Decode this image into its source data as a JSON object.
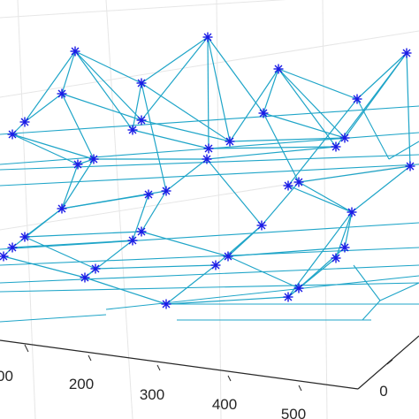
{
  "chart_data": {
    "type": "scatter",
    "title": "",
    "xlabel": "",
    "ylabel": "",
    "zlabel": "",
    "grid": true,
    "x_ticks": [
      {
        "label": "200"
      },
      {
        "label": "300"
      },
      {
        "label": "400"
      },
      {
        "label": "500"
      }
    ],
    "x_partial_tick": "00",
    "y_ticks": [
      {
        "label": "0"
      }
    ],
    "colors": {
      "wire": "#1FA5C8",
      "marker": "#1A1AE6",
      "axis": "#262626",
      "grid": "#E6E6E6"
    },
    "marker": "asterisk",
    "series": [
      {
        "values": [
          {
            "x": 85,
            "y": 58
          },
          {
            "x": 235,
            "y": 42
          },
          {
            "x": 315,
            "y": 78
          },
          {
            "x": 460,
            "y": 60
          },
          {
            "x": 70,
            "y": 106
          },
          {
            "x": 160,
            "y": 94
          },
          {
            "x": 298,
            "y": 128
          },
          {
            "x": 404,
            "y": 112
          },
          {
            "x": 28,
            "y": 138
          },
          {
            "x": 160,
            "y": 136
          },
          {
            "x": 150,
            "y": 147
          },
          {
            "x": 14,
            "y": 152
          },
          {
            "x": 260,
            "y": 160
          },
          {
            "x": 236,
            "y": 168
          },
          {
            "x": 234,
            "y": 180
          },
          {
            "x": 390,
            "y": 156
          },
          {
            "x": 380,
            "y": 166
          },
          {
            "x": 106,
            "y": 180
          },
          {
            "x": 88,
            "y": 186
          },
          {
            "x": 464,
            "y": 188
          },
          {
            "x": 338,
            "y": 206
          },
          {
            "x": 326,
            "y": 210
          },
          {
            "x": 188,
            "y": 216
          },
          {
            "x": 168,
            "y": 220
          },
          {
            "x": 70,
            "y": 236
          },
          {
            "x": 398,
            "y": 240
          },
          {
            "x": 296,
            "y": 255
          },
          {
            "x": 160,
            "y": 262
          },
          {
            "x": 28,
            "y": 268
          },
          {
            "x": 150,
            "y": 272
          },
          {
            "x": 14,
            "y": 280
          },
          {
            "x": 4,
            "y": 290
          },
          {
            "x": 258,
            "y": 290
          },
          {
            "x": 390,
            "y": 280
          },
          {
            "x": 380,
            "y": 292
          },
          {
            "x": 244,
            "y": 300
          },
          {
            "x": 108,
            "y": 304
          },
          {
            "x": 96,
            "y": 314
          },
          {
            "x": 338,
            "y": 326
          },
          {
            "x": 326,
            "y": 336
          },
          {
            "x": 188,
            "y": 344
          }
        ]
      }
    ]
  }
}
